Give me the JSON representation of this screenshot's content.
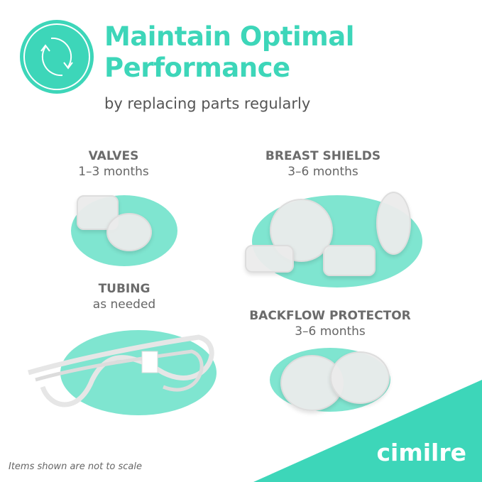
{
  "header": {
    "icon": "refresh-cycle-icon",
    "title_line1": "Maintain Optimal",
    "title_line2": "Performance",
    "subtitle": "by replacing parts regularly"
  },
  "parts": [
    {
      "name": "VALVES",
      "interval": "1–3 months"
    },
    {
      "name": "BREAST SHIELDS",
      "interval": "3–6 months"
    },
    {
      "name": "TUBING",
      "interval": "as needed"
    },
    {
      "name": "BACKFLOW PROTECTOR",
      "interval": "3–6 months"
    }
  ],
  "footer": {
    "note": "Items shown are not to scale",
    "brand": "cimilre"
  },
  "colors": {
    "accent": "#3dd6b9",
    "blob": "#7fe5d0",
    "text": "#666666"
  }
}
